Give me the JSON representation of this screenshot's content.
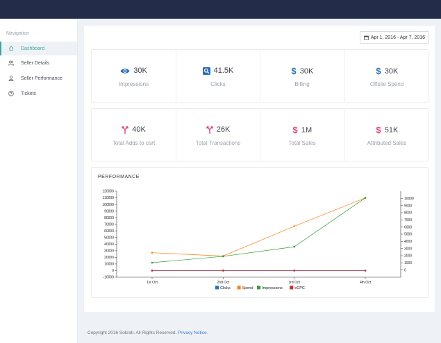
{
  "nav": {
    "heading": "Navigation",
    "items": [
      {
        "label": "Dashboard",
        "icon": "home-icon"
      },
      {
        "label": "Seller Details",
        "icon": "users-icon"
      },
      {
        "label": "Seller Performance",
        "icon": "user-icon"
      },
      {
        "label": "Tickets",
        "icon": "help-circle-icon"
      }
    ]
  },
  "date_range": "Apr 1, 2016 - Apr 7, 2016",
  "stats_row1": [
    {
      "value": "30K",
      "label": "Impressions",
      "icon": "eye-icon"
    },
    {
      "value": "41.5K",
      "label": "Clicks",
      "icon": "search-icon"
    },
    {
      "value": "30K",
      "label": "Billing",
      "icon": "dollar-icon"
    },
    {
      "value": "30K",
      "label": "Offsite Spend",
      "icon": "dollar-icon"
    }
  ],
  "stats_row2": [
    {
      "value": "40K",
      "label": "Total Adds to cart",
      "icon": "merge-icon"
    },
    {
      "value": "26K",
      "label": "Total Transactions",
      "icon": "merge-icon"
    },
    {
      "value": "1M",
      "label": "Total Sales",
      "icon": "dollar-icon"
    },
    {
      "value": "51K",
      "label": "Attributed Sales",
      "icon": "dollar-icon"
    }
  ],
  "colors": {
    "accent": "#3aa6a0",
    "blue_icon": "#2a6fb5",
    "pink_icon": "#e2447f",
    "topbar": "#232c48"
  },
  "performance": {
    "title": "PERFORMANCE"
  },
  "chart_data": {
    "type": "line",
    "x": [
      "1st Oct",
      "2nd Oct",
      "3rd Oct",
      "4th Oct"
    ],
    "y_left": {
      "ticks": [
        -10000,
        0,
        10000,
        20000,
        30000,
        40000,
        50000,
        60000,
        70000,
        80000,
        90000,
        100000,
        110000,
        120000
      ],
      "range": [
        -10000,
        120000
      ]
    },
    "y_right": {
      "ticks": [
        0,
        1000,
        2000,
        3000,
        4000,
        5000,
        6000,
        7000,
        8000,
        9000,
        10000
      ],
      "range": [
        -1000,
        11000
      ]
    },
    "series": [
      {
        "name": "Clicks",
        "color": "#1f77b4",
        "axis": "left",
        "values": [
          0,
          0,
          0,
          0
        ]
      },
      {
        "name": "Spend",
        "color": "#ff7f0e",
        "axis": "left",
        "values": [
          27000,
          22000,
          67000,
          110000
        ]
      },
      {
        "name": "Impressions",
        "color": "#2ca02c",
        "axis": "left",
        "values": [
          12000,
          21500,
          36000,
          110000
        ]
      },
      {
        "name": "eCPC",
        "color": "#d62728",
        "axis": "left",
        "values": [
          0,
          0,
          0,
          0
        ]
      }
    ],
    "legend_position": "bottom"
  },
  "footer": {
    "text": "Copyright 2016 Sokrati. All Rights Reserved.",
    "link": "Privacy Notice."
  }
}
